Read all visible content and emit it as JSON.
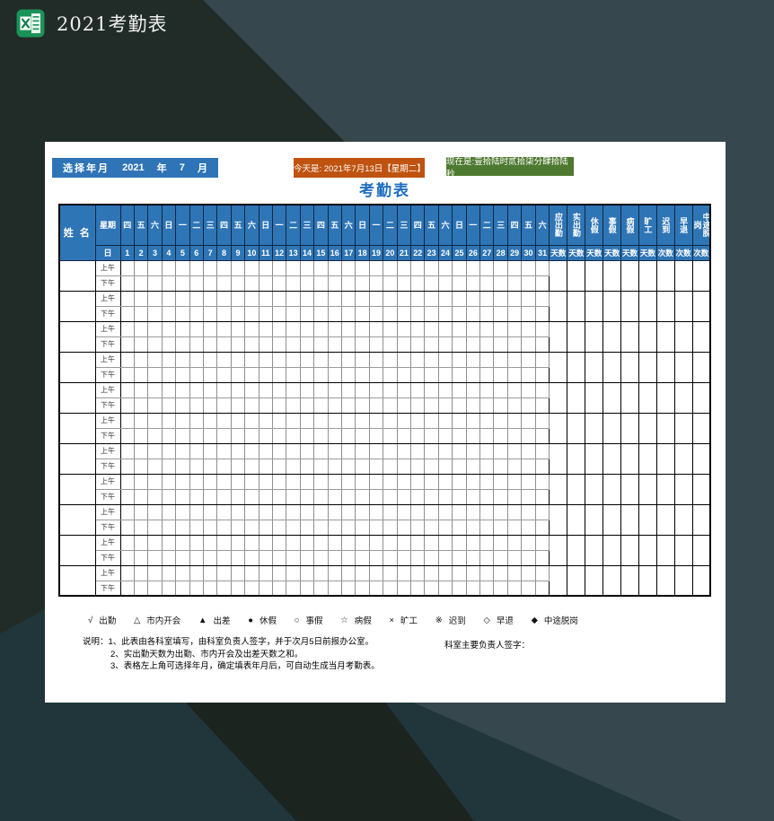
{
  "window": {
    "title": "2021考勤表",
    "app_icon": "excel-icon"
  },
  "toolbar": {
    "year_selector": {
      "label": "选择年月",
      "year": "2021",
      "year_unit": "年",
      "month": "7",
      "month_unit": "月"
    },
    "today": "今天是: 2021年7月13日【星期二】",
    "now": "现在是:壹拾陆时贰拾柒分肆拾陆秒"
  },
  "sheet": {
    "title": "考勤表",
    "header": {
      "name_label": "姓 名",
      "week_label": "星期",
      "day_label": "日",
      "weekdays": [
        "四",
        "五",
        "六",
        "日",
        "一",
        "二",
        "三",
        "四",
        "五",
        "六",
        "日",
        "一",
        "二",
        "三",
        "四",
        "五",
        "六",
        "日",
        "一",
        "二",
        "三",
        "四",
        "五",
        "六",
        "日",
        "一",
        "二",
        "三",
        "四",
        "五",
        "六"
      ],
      "days": [
        1,
        2,
        3,
        4,
        5,
        6,
        7,
        8,
        9,
        10,
        11,
        12,
        13,
        14,
        15,
        16,
        17,
        18,
        19,
        20,
        21,
        22,
        23,
        24,
        25,
        26,
        27,
        28,
        29,
        30,
        31
      ],
      "summary": [
        {
          "title": "应出勤",
          "unit": "天数"
        },
        {
          "title": "实出勤",
          "unit": "天数"
        },
        {
          "title": "休假",
          "unit": "天数"
        },
        {
          "title": "事假",
          "unit": "天数"
        },
        {
          "title": "病假",
          "unit": "天数"
        },
        {
          "title": "旷工",
          "unit": "天数"
        },
        {
          "title": "迟到",
          "unit": "次数"
        },
        {
          "title": "早退",
          "unit": "次数"
        },
        {
          "title": "中途脱岗",
          "unit": "次数"
        }
      ]
    },
    "body": {
      "row_count": 11,
      "am_label": "上午",
      "pm_label": "下午"
    },
    "legend": [
      {
        "symbol": "√",
        "label": "出勤"
      },
      {
        "symbol": "△",
        "label": "市内开会"
      },
      {
        "symbol": "▲",
        "label": "出差"
      },
      {
        "symbol": "●",
        "label": "休假"
      },
      {
        "symbol": "○",
        "label": "事假"
      },
      {
        "symbol": "☆",
        "label": "病假"
      },
      {
        "symbol": "×",
        "label": "旷工"
      },
      {
        "symbol": "※",
        "label": "迟到"
      },
      {
        "symbol": "◇",
        "label": "早退"
      },
      {
        "symbol": "◆",
        "label": "中途脱岗"
      }
    ],
    "notes": {
      "lines": [
        "说明：1、此表由各科室填写，由科室负责人签字，并于次月5日前报办公室。",
        "2、实出勤天数为出勤、市内开会及出差天数之和。",
        "3、表格左上角可选择年月，确定填表年月后，可自动生成当月考勤表。"
      ],
      "sign_label": "科室主要负责人签字："
    }
  },
  "colors": {
    "header_blue": "#2E75B6",
    "selector_blue": "#2E74B6",
    "today_orange": "#BF530F",
    "now_green": "#4E7930",
    "title_blue": "#1E6EC0",
    "excel_green": "#1A9358"
  }
}
